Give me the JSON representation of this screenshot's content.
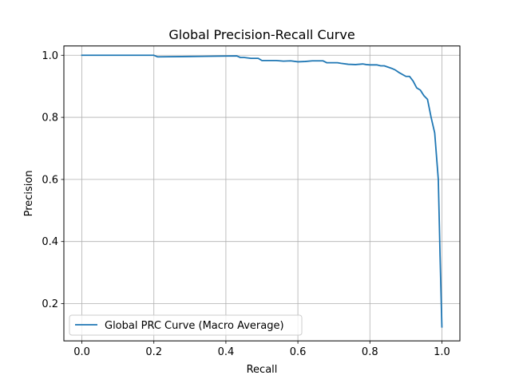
{
  "chart_data": {
    "type": "line",
    "title": "Global Precision-Recall Curve",
    "xlabel": "Recall",
    "ylabel": "Precision",
    "xlim": [
      -0.05,
      1.05
    ],
    "ylim": [
      0.08,
      1.03
    ],
    "x_ticks": [
      0.0,
      0.2,
      0.4,
      0.6,
      0.8,
      1.0
    ],
    "x_tick_labels": [
      "0.0",
      "0.2",
      "0.4",
      "0.6",
      "0.8",
      "1.0"
    ],
    "y_ticks": [
      0.2,
      0.4,
      0.6,
      0.8,
      1.0
    ],
    "y_tick_labels": [
      "0.2",
      "0.4",
      "0.6",
      "0.8",
      "1.0"
    ],
    "grid": true,
    "legend_position": "lower-left",
    "series": [
      {
        "name": "Global PRC Curve (Macro Average)",
        "color": "#1f77b4",
        "x": [
          0.0,
          0.1,
          0.2,
          0.21,
          0.3,
          0.43,
          0.44,
          0.45,
          0.47,
          0.49,
          0.5,
          0.54,
          0.56,
          0.58,
          0.6,
          0.62,
          0.64,
          0.67,
          0.68,
          0.71,
          0.72,
          0.74,
          0.76,
          0.78,
          0.79,
          0.8,
          0.82,
          0.83,
          0.84,
          0.86,
          0.87,
          0.88,
          0.9,
          0.91,
          0.92,
          0.93,
          0.94,
          0.95,
          0.96,
          0.97,
          0.98,
          0.99,
          0.995,
          1.0
        ],
        "y": [
          1.0,
          1.0,
          1.0,
          0.995,
          0.996,
          0.998,
          0.993,
          0.993,
          0.99,
          0.99,
          0.983,
          0.983,
          0.981,
          0.982,
          0.979,
          0.98,
          0.982,
          0.982,
          0.976,
          0.976,
          0.974,
          0.971,
          0.97,
          0.972,
          0.97,
          0.969,
          0.969,
          0.966,
          0.966,
          0.958,
          0.953,
          0.945,
          0.932,
          0.932,
          0.917,
          0.895,
          0.888,
          0.87,
          0.858,
          0.8,
          0.75,
          0.6,
          0.35,
          0.125
        ]
      }
    ]
  }
}
